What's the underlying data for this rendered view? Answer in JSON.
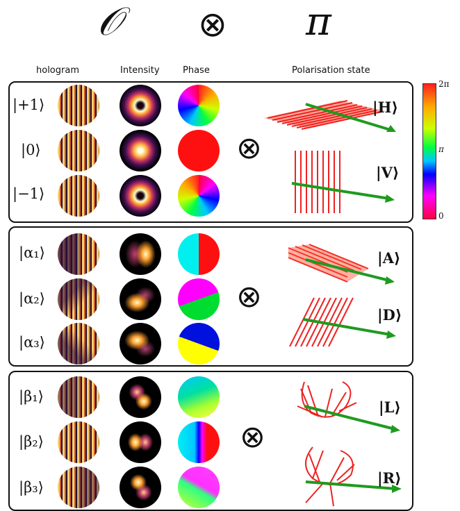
{
  "header": {
    "left_symbol": "𝒪",
    "middle_symbol": "⊗",
    "right_symbol": "π"
  },
  "columns": {
    "hologram": "hologram",
    "intensity": "Intensity",
    "phase": "Phase",
    "polarisation": "Polarisation state"
  },
  "colorbar": {
    "top": "2π",
    "middle": "π",
    "bottom": "0"
  },
  "otimes": "⊗",
  "panels": [
    {
      "kets": [
        "|+1⟩",
        "|0⟩",
        "|−1⟩"
      ],
      "pol_kets": [
        "|H⟩",
        "|V⟩"
      ]
    },
    {
      "kets": [
        "|α₁⟩",
        "|α₂⟩",
        "|α₃⟩"
      ],
      "pol_kets": [
        "|A⟩",
        "|D⟩"
      ]
    },
    {
      "kets": [
        "|β₁⟩",
        "|β₂⟩",
        "|β₃⟩"
      ],
      "pol_kets": [
        "|L⟩",
        "|R⟩"
      ]
    }
  ],
  "colors": {
    "arrow": "#ff3b1f",
    "propagation_arrow": "#1f9a1f"
  }
}
